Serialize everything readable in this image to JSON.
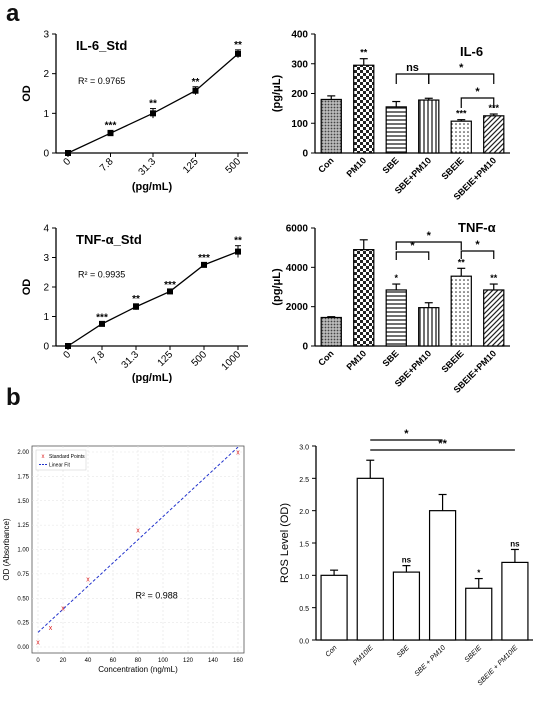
{
  "panels": {
    "a": "a",
    "b": "b"
  },
  "chart_data": [
    {
      "id": "il6_std",
      "type": "line",
      "title": "IL-6_Std",
      "r2_text": "R² = 0.9765",
      "xlabel": "(pg/mL)",
      "ylabel": "OD",
      "categories": [
        "0",
        "7.8",
        "31.3",
        "125",
        "500"
      ],
      "values": [
        0.0,
        0.5,
        1.0,
        1.57,
        2.5
      ],
      "errors": [
        0.02,
        0.07,
        0.12,
        0.1,
        0.1
      ],
      "annotations": [
        "",
        "***",
        "**",
        "**",
        "**"
      ],
      "ylim": [
        0,
        3
      ],
      "yticks": [
        "0",
        "1",
        "2",
        "3"
      ]
    },
    {
      "id": "il6_bar",
      "type": "bar",
      "title": "IL-6",
      "ylabel": "(pg/μL)",
      "categories": [
        "Con",
        "PM10",
        "SBE",
        "SBE+PM10",
        "SBEIE",
        "SBEIE+PM10"
      ],
      "values": [
        180,
        295,
        155,
        178,
        107,
        125
      ],
      "errors": [
        12,
        22,
        18,
        6,
        5,
        6
      ],
      "annotations": [
        "",
        "**",
        "",
        "",
        "***",
        "***"
      ],
      "patterns": [
        "dots-dense",
        "checker",
        "hlines",
        "vlines",
        "dots",
        "diag"
      ],
      "ylim": [
        0,
        400
      ],
      "yticks": [
        "0",
        "100",
        "200",
        "300",
        "400"
      ],
      "brackets": [
        {
          "from": 2,
          "to": 3,
          "label": "ns"
        },
        {
          "from": 3,
          "to": 5,
          "label": "*"
        },
        {
          "from": 4,
          "to": 5,
          "label": "*"
        }
      ]
    },
    {
      "id": "tnf_std",
      "type": "line",
      "title": "TNF-α_Std",
      "r2_text": "R² = 0.9935",
      "xlabel": "(pg/mL)",
      "ylabel": "OD",
      "categories": [
        "0",
        "7.8",
        "31.3",
        "125",
        "500",
        "1000"
      ],
      "values": [
        0.0,
        0.75,
        1.33,
        1.85,
        2.75,
        3.2
      ],
      "errors": [
        0.02,
        0.05,
        0.1,
        0.05,
        0.06,
        0.2
      ],
      "annotations": [
        "",
        "***",
        "**",
        "***",
        "***",
        "**"
      ],
      "ylim": [
        0,
        4
      ],
      "yticks": [
        "0",
        "1",
        "2",
        "3",
        "4"
      ]
    },
    {
      "id": "tnf_bar",
      "type": "bar",
      "title": "TNF-α",
      "ylabel": "(pg/μL)",
      "categories": [
        "Con",
        "PM10",
        "SBE",
        "SBE+PM10",
        "SBEIE",
        "SBEIE+PM10"
      ],
      "values": [
        1450,
        4900,
        2850,
        1950,
        3550,
        2850
      ],
      "errors": [
        40,
        500,
        300,
        250,
        400,
        300
      ],
      "annotations": [
        "",
        "",
        "*",
        "",
        "**",
        "**"
      ],
      "patterns": [
        "dots-dense",
        "checker",
        "hlines",
        "vlines",
        "dots",
        "diag"
      ],
      "ylim": [
        0,
        6000
      ],
      "yticks": [
        "0",
        "2000",
        "4000",
        "6000"
      ],
      "brackets": [
        {
          "from": 2,
          "to": 3,
          "label": "*"
        },
        {
          "from": 2,
          "to": 4,
          "label": "*"
        },
        {
          "from": 4,
          "to": 5,
          "label": "*"
        }
      ]
    },
    {
      "id": "ros_std",
      "type": "scatter",
      "legend": [
        "Standard Points",
        "Linear Fit"
      ],
      "legend_position": "top-left",
      "r2_text": "R² = 0.988",
      "xlabel": "Concentration (ng/mL)",
      "ylabel": "OD (Absorbance)",
      "x": [
        0,
        10,
        20,
        40,
        80,
        160
      ],
      "y": [
        0.05,
        0.2,
        0.4,
        0.7,
        1.2,
        2.0
      ],
      "fit": {
        "x": [
          0,
          160
        ],
        "y": [
          0.15,
          2.05
        ]
      },
      "xlim": [
        0,
        160
      ],
      "ylim": [
        0,
        2.0
      ],
      "xticks": [
        "0",
        "20",
        "40",
        "60",
        "80",
        "100",
        "120",
        "140",
        "160"
      ],
      "yticks": [
        "0.00",
        "0.25",
        "0.50",
        "0.75",
        "1.00",
        "1.25",
        "1.50",
        "1.75",
        "2.00"
      ],
      "grid": true,
      "colors": {
        "points": "#dd2222",
        "fit": "#2233cc"
      }
    },
    {
      "id": "ros_bar",
      "type": "bar",
      "ylabel": "ROS Level (OD)",
      "categories": [
        "Con",
        "PM10IE",
        "SBE",
        "SBE + PM10",
        "SBEIE",
        "SBEIE + PM10IE"
      ],
      "values": [
        1.0,
        2.5,
        1.05,
        2.0,
        0.8,
        1.2
      ],
      "errors": [
        0.08,
        0.28,
        0.1,
        0.25,
        0.15,
        0.2
      ],
      "annotations": [
        "",
        "",
        "ns",
        "",
        "*",
        "ns"
      ],
      "ylim": [
        0,
        3.0
      ],
      "yticks": [
        "0.0",
        "0.5",
        "1.0",
        "1.5",
        "2.0",
        "2.5",
        "3.0"
      ],
      "brackets": [
        {
          "from": 1,
          "to": 3,
          "label": "*"
        },
        {
          "from": 1,
          "to": 5,
          "label": "**"
        }
      ]
    }
  ]
}
